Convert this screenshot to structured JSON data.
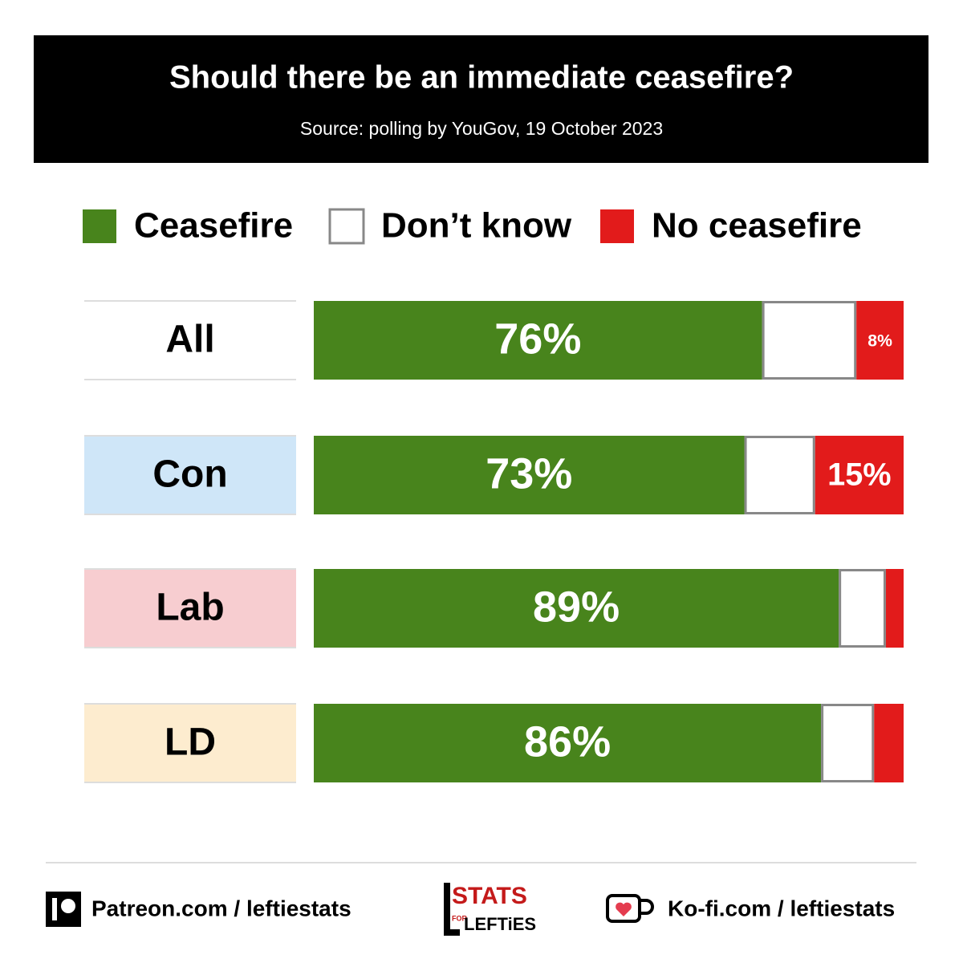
{
  "chart_data": {
    "type": "stacked-bar-horizontal",
    "title": "Should there be an immediate ceasefire?",
    "subtitle": "Source: polling by YouGov, 19 October 2023",
    "categories": [
      "All",
      "Con",
      "Lab",
      "LD"
    ],
    "category_colors": [
      "#ffffff",
      "#cfe6f8",
      "#f7cdd0",
      "#fdeccf"
    ],
    "series": [
      {
        "name": "Ceasefire",
        "color": "#48841c",
        "values": [
          76,
          73,
          89,
          86
        ],
        "value_labels": [
          "76%",
          "73%",
          "89%",
          "86%"
        ]
      },
      {
        "name": "Don’t know",
        "color": "#ffffff",
        "values": [
          16,
          12,
          8,
          9
        ]
      },
      {
        "name": "No ceasefire",
        "color": "#e21b1b",
        "values": [
          8,
          15,
          3,
          5
        ],
        "value_labels": [
          "8%",
          "15%",
          null,
          null
        ]
      }
    ],
    "xlim": [
      0,
      100
    ]
  },
  "footer": {
    "patreon": "Patreon.com / leftiestats",
    "kofi": "Ko-fi.com / leftiestats",
    "logo": [
      "STATS",
      "FOR",
      "LEFTiES"
    ]
  }
}
